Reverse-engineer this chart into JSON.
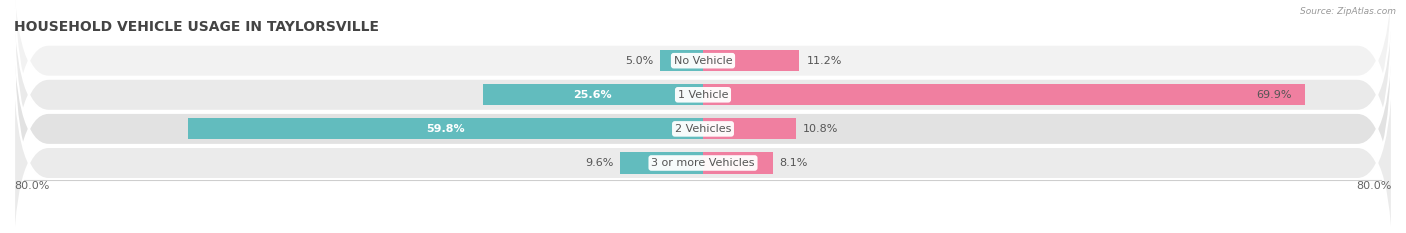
{
  "title": "HOUSEHOLD VEHICLE USAGE IN TAYLORSVILLE",
  "source": "Source: ZipAtlas.com",
  "categories": [
    "No Vehicle",
    "1 Vehicle",
    "2 Vehicles",
    "3 or more Vehicles"
  ],
  "owner_values": [
    5.0,
    25.6,
    59.8,
    9.6
  ],
  "renter_values": [
    11.2,
    69.9,
    10.8,
    8.1
  ],
  "owner_color": "#62bcbe",
  "renter_color": "#f07fa0",
  "row_bg_even": "#f0f0f0",
  "row_bg_odd": "#e6e6e6",
  "xlim": [
    -80.0,
    80.0
  ],
  "title_fontsize": 10,
  "label_fontsize": 8,
  "category_fontsize": 8,
  "bar_height": 0.62,
  "owner_label_inside_threshold": 15.0,
  "renter_label_inside_threshold": 50.0
}
